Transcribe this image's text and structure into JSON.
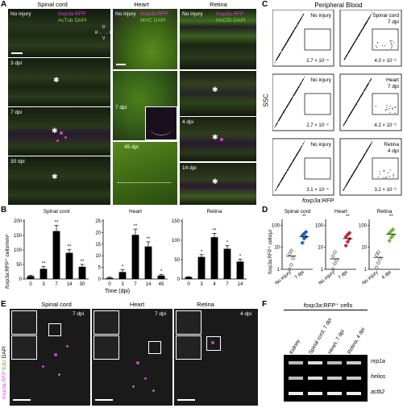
{
  "panels": {
    "A": "A",
    "B": "B",
    "C": "C",
    "D": "D",
    "E": "E",
    "F": "F"
  },
  "panelA": {
    "col_headers": [
      "Spinal cord",
      "Heart",
      "Retina"
    ],
    "sc_labels": [
      "No injury",
      "3 dpi",
      "7 dpi",
      "30 dpi"
    ],
    "sc_marker_red": "foxp3a",
    "sc_marker_red_suffix": ":RFP",
    "sc_marker_green": "AcTub DAPI",
    "heart_marker_red": "foxp3a:RFP",
    "heart_marker_green": "MHC DAPI",
    "heart_labels": [
      "No injury",
      "7 dpi",
      "45 dpi"
    ],
    "retina_marker_red": "foxp3a:RFP",
    "retina_marker_green": "HuC/D DAPI",
    "retina_labels": [
      "No injury",
      "4 dpi",
      "14 dpi"
    ],
    "orient": [
      "D",
      "R",
      "C",
      "V"
    ]
  },
  "panelB": {
    "ylabel_italic": "foxp3a",
    "ylabel_rest": ":RFP⁺ cells/mm²",
    "xlabel": "Time (dpi)",
    "chart_data": [
      {
        "type": "bar",
        "title": "Spinal cord",
        "categories": [
          "0",
          "3",
          "7",
          "14",
          "30"
        ],
        "values": [
          10,
          35,
          165,
          90,
          42
        ],
        "errors": [
          3,
          8,
          20,
          12,
          8
        ],
        "sig": [
          "",
          "**",
          "**",
          "**",
          "**"
        ],
        "ylim": [
          0,
          200
        ],
        "yticks": [
          0,
          50,
          100,
          150,
          200
        ]
      },
      {
        "type": "bar",
        "title": "Heart",
        "categories": [
          "0",
          "3",
          "7",
          "14",
          "45"
        ],
        "values": [
          0.5,
          3,
          19,
          14,
          1.5
        ],
        "errors": [
          0.3,
          1,
          2.5,
          2,
          0.5
        ],
        "sig": [
          "",
          "*",
          "**",
          "**",
          "*"
        ],
        "ylim": [
          0,
          25
        ],
        "yticks": [
          0,
          5,
          10,
          15,
          20,
          25
        ]
      },
      {
        "type": "bar",
        "title": "Retina",
        "categories": [
          "0",
          "3",
          "4",
          "7",
          "14"
        ],
        "values": [
          5,
          57,
          108,
          78,
          45
        ],
        "errors": [
          1,
          6,
          10,
          8,
          6
        ],
        "sig": [
          "",
          "*",
          "**",
          "*",
          "*"
        ],
        "ylim": [
          0,
          150
        ],
        "yticks": [
          0,
          50,
          100,
          150
        ]
      }
    ]
  },
  "panelC": {
    "title": "Peripheral Blood",
    "ylabel": "SSC",
    "xlabel_italic": "foxp3a",
    "xlabel_rest": ":RFP",
    "rows": [
      {
        "left_label": "No injury",
        "left_value": "2.7 × 10⁻⁴",
        "right_label": [
          "Spinal cord",
          "7 dpi"
        ],
        "right_value": "4.0 × 10⁻³"
      },
      {
        "left_label": "No injury",
        "left_value": "2.7 × 10⁻⁴",
        "right_label": [
          "Heart",
          "7 dpi"
        ],
        "right_value": "4.2 × 10⁻³"
      },
      {
        "left_label": "No injury",
        "left_value": "3.1 × 10⁻⁴",
        "right_label": [
          "Retina",
          "4 dpi"
        ],
        "right_value": "3.2 × 10⁻³"
      }
    ]
  },
  "panelD": {
    "ylabel_italic": "foxp3a",
    "ylabel_rest": ":RFP⁺ cells/μl",
    "yticks": [
      "1",
      "10",
      "100"
    ],
    "chart_data": [
      {
        "type": "scatter",
        "title": "Spinal cord",
        "groups": [
          "No injury",
          "7 dpi"
        ],
        "sig": "**",
        "points": [
          [
            1.0,
            1.6,
            3.2,
            5.0,
            7.0
          ],
          [
            16,
            25,
            30,
            35,
            42,
            50
          ]
        ],
        "means": [
          4,
          30
        ]
      },
      {
        "type": "scatter",
        "title": "Heart",
        "groups": [
          "No injury",
          "7 dpi"
        ],
        "sig": "**",
        "points": [
          [
            1.0,
            1.8,
            2.6,
            4.0,
            6.0
          ],
          [
            12,
            18,
            24,
            30,
            38,
            45
          ]
        ],
        "means": [
          3,
          25
        ]
      },
      {
        "type": "scatter",
        "title": "Retina",
        "groups": [
          "No injury",
          "4 dpi"
        ],
        "sig": "**",
        "points": [
          [
            1.2,
            2.0,
            3.0,
            4.5,
            6.0
          ],
          [
            20,
            28,
            35,
            45,
            55,
            65
          ]
        ],
        "means": [
          3.5,
          40
        ]
      }
    ],
    "colors": {
      "sc": "#2a5fb8",
      "heart": "#c0283c",
      "retina": "#6fb83a",
      "ctrl": "#666666"
    }
  },
  "panelE": {
    "col_headers": [
      "Spinal cord",
      "Heart",
      "Retina"
    ],
    "timepoints": [
      "7 dpi",
      "7 dpi",
      "4 dpi"
    ],
    "side_label_red": "foxp3a:RFP",
    "side_label_green": "EdU",
    "side_label_white": "DAPI"
  },
  "panelF": {
    "header_italic": "foxp3a",
    "header_rest": ":RFP⁺ cells",
    "lanes": [
      "Kidney",
      "Spinal cord, 7 dpi",
      "Heart, 7 dpi",
      "Retina, 4 dpi"
    ],
    "genes": [
      "nrp1a",
      "helios",
      "actb2"
    ]
  }
}
